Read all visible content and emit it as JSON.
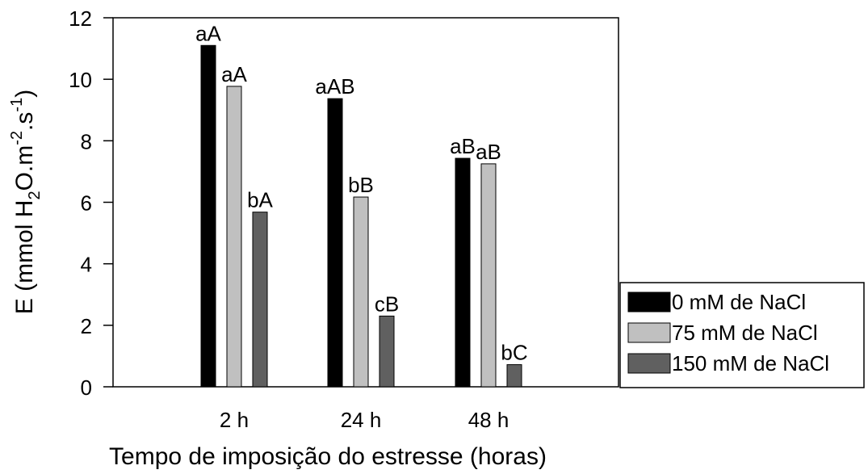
{
  "chart_data": {
    "type": "bar",
    "categories": [
      "2 h",
      "24 h",
      "48 h"
    ],
    "series": [
      {
        "name": "0 mM de NaCl",
        "color": "#000000",
        "values": [
          11.1,
          9.37,
          7.43
        ],
        "labels": [
          "aA",
          "aAB",
          "aB"
        ]
      },
      {
        "name": "75 mM de NaCl",
        "color": "#c0c0c0",
        "values": [
          9.77,
          6.17,
          7.25
        ],
        "labels": [
          "aA",
          "bB",
          "aB"
        ]
      },
      {
        "name": "150 mM de NaCl",
        "color": "#606060",
        "values": [
          5.68,
          2.3,
          0.72
        ],
        "labels": [
          "bA",
          "cB",
          "bC"
        ]
      }
    ],
    "xlabel": "Tempo de imposição do estresse (horas)",
    "ylabel": {
      "prefix": "E (mmol H",
      "sub1": "2",
      "mid": "O.m",
      "sup1": "-2",
      "mid2": ".s",
      "sup2": "-1",
      "suffix": ")"
    },
    "ylim": [
      0,
      12
    ],
    "yticks": [
      0,
      2,
      4,
      6,
      8,
      10,
      12
    ],
    "grid": false,
    "legend_position": "bottom-right"
  }
}
